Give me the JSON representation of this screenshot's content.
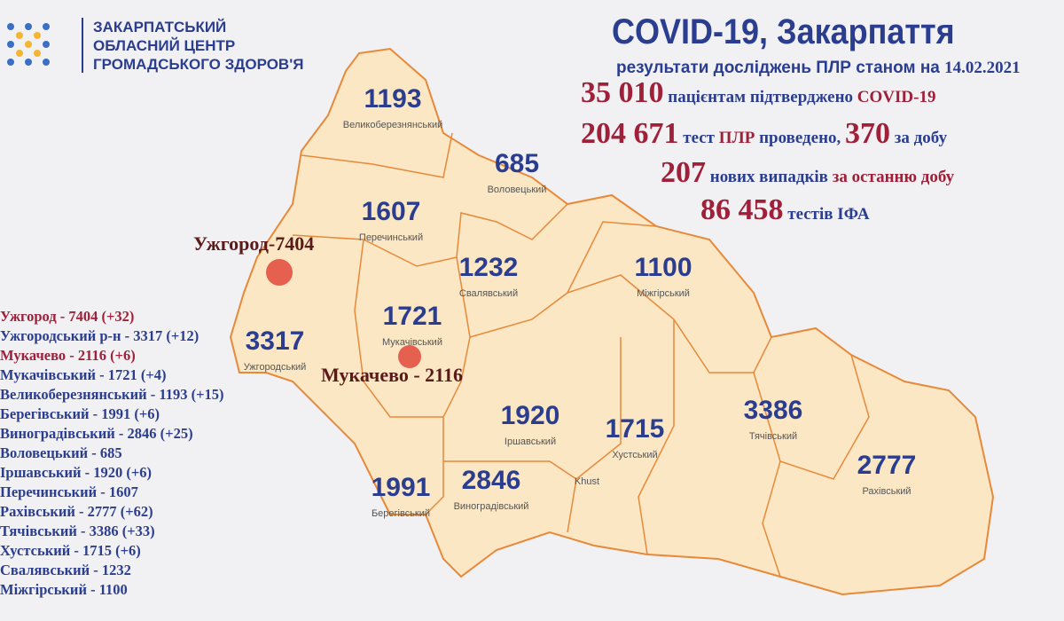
{
  "header": {
    "org_lines": [
      "ЗАКАРПАТСЬКИЙ",
      "ОБЛАСНИЙ ЦЕНТР",
      "ГРОМАДСЬКОГО ЗДОРОВ'Я"
    ],
    "title": "COVID-19, Закарпаття",
    "subtitle": "результати досліджень ПЛР станом на",
    "date": "14.02.2021"
  },
  "stats": {
    "confirmed": {
      "value": "35 010",
      "text": "пацієнтам підтверджено",
      "tail": "COVID-19"
    },
    "tests": {
      "value": "204 671",
      "t1": "тест",
      "t2": "ПЛР",
      "t3": "проведено,",
      "daily": "370",
      "t4": "за добу"
    },
    "new_cases": {
      "value": "207",
      "t1": "нових випадків",
      "t2": "за останню добу"
    },
    "ifa": {
      "value": "86 458",
      "text": "тестів ІФА"
    }
  },
  "list": [
    {
      "text": "Ужгород - 7404 (+32)",
      "highlight": true
    },
    {
      "text": "Ужгородський р-н - 3317 (+12)",
      "highlight": false
    },
    {
      "text": "Мукачево - 2116 (+6)",
      "highlight": true
    },
    {
      "text": "Мукачівський - 1721 (+4)",
      "highlight": false
    },
    {
      "text": "Великоберезнянський - 1193 (+15)",
      "highlight": false
    },
    {
      "text": "Берегівський - 1991 (+6)",
      "highlight": false
    },
    {
      "text": "Виноградівський - 2846 (+25)",
      "highlight": false
    },
    {
      "text": "Воловецький - 685",
      "highlight": false
    },
    {
      "text": "Іршавський - 1920 (+6)",
      "highlight": false
    },
    {
      "text": "Перечинський - 1607",
      "highlight": false
    },
    {
      "text": "Рахівський - 2777 (+62)",
      "highlight": false
    },
    {
      "text": "Тячівський - 3386 (+33)",
      "highlight": false
    },
    {
      "text": "Хустський - 1715 (+6)",
      "highlight": false
    },
    {
      "text": "Свалявський - 1232",
      "highlight": false
    },
    {
      "text": "Міжгірський - 1100",
      "highlight": false
    }
  ],
  "districts": [
    {
      "name": "Великоберезнянський",
      "value": "1193"
    },
    {
      "name": "Воловецький",
      "value": "685"
    },
    {
      "name": "Перечинський",
      "value": "1607"
    },
    {
      "name": "Свалявський",
      "value": "1232"
    },
    {
      "name": "Міжгірський",
      "value": "1100"
    },
    {
      "name": "Ужгородський",
      "value": "3317"
    },
    {
      "name": "Мукачівський",
      "value": "1721"
    },
    {
      "name": "Іршавський",
      "value": "1920"
    },
    {
      "name": "Хустський",
      "value": "1715"
    },
    {
      "name": "Тячівський",
      "value": "3386"
    },
    {
      "name": "Рахівський",
      "value": "2777"
    },
    {
      "name": "Берегівський",
      "value": "1991"
    },
    {
      "name": "Виноградівський",
      "value": "2846"
    },
    {
      "name": "Khust",
      "value": ""
    }
  ],
  "cities": {
    "uzhhorod": "Ужгород-7404",
    "mukachevo": "Мукачево - 2116"
  },
  "colors": {
    "map_fill": "#fbe7c4",
    "border": "#e8893a",
    "accent_blue": "#2b3d8f",
    "accent_red": "#a0203a",
    "city_marker": "#e0483a"
  }
}
